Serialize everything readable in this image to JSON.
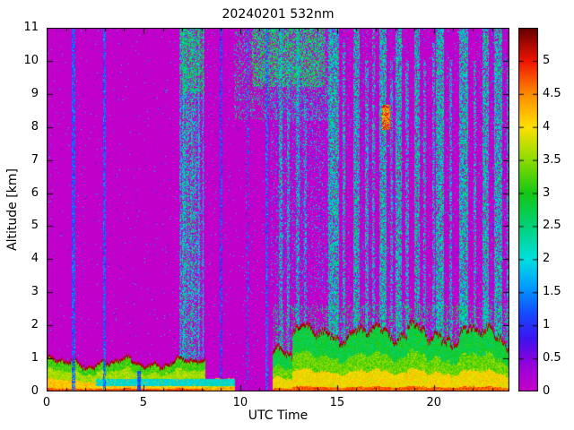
{
  "chart_data": {
    "type": "heatmap",
    "title": "20240201 532nm",
    "xlabel": "UTC Time",
    "ylabel": "Altitude [km]",
    "xlim": [
      0,
      23.9
    ],
    "ylim": [
      0,
      11
    ],
    "xticks": [
      0,
      5,
      10,
      15,
      20
    ],
    "yticks": [
      0,
      1,
      2,
      3,
      4,
      5,
      6,
      7,
      8,
      9,
      10,
      11
    ],
    "seed": 42,
    "background_value": 0.05,
    "colorbar": {
      "min": 0,
      "max": 5.5,
      "ticks": [
        0,
        0.5,
        1,
        1.5,
        2,
        2.5,
        3,
        3.5,
        4,
        4.5,
        5
      ],
      "stops": [
        {
          "v": 0.0,
          "c": "#C800C8"
        },
        {
          "v": 0.4,
          "c": "#9600DC"
        },
        {
          "v": 0.8,
          "c": "#3C14F0"
        },
        {
          "v": 1.2,
          "c": "#1450FF"
        },
        {
          "v": 1.6,
          "c": "#00A0FF"
        },
        {
          "v": 2.0,
          "c": "#00E0E0"
        },
        {
          "v": 2.5,
          "c": "#00D278"
        },
        {
          "v": 3.0,
          "c": "#14C814"
        },
        {
          "v": 3.5,
          "c": "#8CDC00"
        },
        {
          "v": 4.0,
          "c": "#FFE100"
        },
        {
          "v": 4.5,
          "c": "#FF8C00"
        },
        {
          "v": 5.0,
          "c": "#F01400"
        },
        {
          "v": 5.5,
          "c": "#640000"
        }
      ]
    },
    "speckle_regions": [
      {
        "t": [
          0,
          6.85
        ],
        "z": [
          0,
          11
        ],
        "density": 0.012,
        "v": [
          0.5,
          2.2
        ],
        "streaks": true
      },
      {
        "t": [
          8.15,
          11.6
        ],
        "z": [
          0,
          11
        ],
        "density": 0.015,
        "v": [
          0.5,
          2.2
        ],
        "streaks": true
      },
      {
        "t": [
          11.6,
          23.9
        ],
        "z": [
          0,
          11
        ],
        "density": 0.06,
        "v": [
          0.6,
          2.4
        ],
        "streaks": true
      },
      {
        "t": [
          6.85,
          8.1
        ],
        "z": [
          0,
          11
        ],
        "density": 0.45,
        "v": [
          1.3,
          2.7
        ],
        "streaks": true
      },
      {
        "t": [
          7.0,
          7.65
        ],
        "z": [
          0,
          11
        ],
        "density": 0.3,
        "v": [
          1.8,
          2.9
        ],
        "streaks": false
      },
      {
        "t": [
          6.9,
          8.1
        ],
        "z": [
          9,
          11
        ],
        "density": 0.4,
        "v": [
          2.2,
          3.2
        ],
        "streaks": false
      },
      {
        "t": [
          9.7,
          14.7
        ],
        "z": [
          8.2,
          11
        ],
        "density": 0.22,
        "v": [
          1.6,
          3.0
        ],
        "streaks": false
      },
      {
        "t": [
          10.6,
          14.3
        ],
        "z": [
          9.2,
          11
        ],
        "density": 0.5,
        "v": [
          2.0,
          3.3
        ],
        "streaks": false
      },
      {
        "t": [
          11.6,
          14.7
        ],
        "z": [
          3,
          9.2
        ],
        "density": 0.1,
        "v": [
          0.9,
          2.4
        ],
        "streaks": true
      },
      {
        "t": [
          11.65,
          23.9
        ],
        "z": [
          1,
          2.6
        ],
        "density": 0.25,
        "v": [
          2.0,
          3.2
        ],
        "streaks": true
      }
    ],
    "stripes": [
      {
        "t": 9.0,
        "w": 0.08,
        "z": [
          0,
          11
        ],
        "density": 0.6,
        "v": [
          0.8,
          1.6
        ]
      },
      {
        "t": 10.35,
        "w": 0.1,
        "z": [
          0,
          11
        ],
        "density": 0.25,
        "v": [
          0.8,
          1.8
        ]
      },
      {
        "t": 11.35,
        "w": 0.09,
        "z": [
          0,
          11
        ],
        "density": 0.65,
        "v": [
          0.9,
          1.8
        ]
      },
      {
        "t": 12.05,
        "w": 0.14,
        "z": [
          0.3,
          11
        ],
        "density": 0.6,
        "v": [
          1.4,
          2.8
        ]
      },
      {
        "t": 12.45,
        "w": 0.1,
        "z": [
          0.3,
          10
        ],
        "density": 0.55,
        "v": [
          1.4,
          2.7
        ]
      },
      {
        "t": 12.95,
        "w": 0.12,
        "z": [
          0.3,
          11
        ],
        "density": 0.6,
        "v": [
          1.4,
          2.8
        ]
      },
      {
        "t": 13.35,
        "w": 0.09,
        "z": [
          0.3,
          9
        ],
        "density": 0.5,
        "v": [
          1.3,
          2.6
        ]
      },
      {
        "t": 14.8,
        "w": 0.5,
        "z": [
          0.3,
          11
        ],
        "density": 0.7,
        "v": [
          1.5,
          2.9
        ]
      },
      {
        "t": 15.35,
        "w": 0.1,
        "z": [
          0.3,
          10.5
        ],
        "density": 0.6,
        "v": [
          1.4,
          2.8
        ]
      },
      {
        "t": 16.0,
        "w": 0.28,
        "z": [
          0.3,
          11
        ],
        "density": 0.68,
        "v": [
          1.5,
          2.9
        ]
      },
      {
        "t": 16.5,
        "w": 0.12,
        "z": [
          0.3,
          10
        ],
        "density": 0.55,
        "v": [
          1.4,
          2.7
        ]
      },
      {
        "t": 16.85,
        "w": 0.1,
        "z": [
          0.3,
          11
        ],
        "density": 0.5,
        "v": [
          1.4,
          2.7
        ]
      },
      {
        "t": 17.35,
        "w": 0.35,
        "z": [
          0.3,
          11
        ],
        "density": 0.7,
        "v": [
          1.5,
          2.9
        ]
      },
      {
        "t": 17.8,
        "w": 0.1,
        "z": [
          0.3,
          10
        ],
        "density": 0.5,
        "v": [
          1.4,
          2.7
        ]
      },
      {
        "t": 18.15,
        "w": 0.3,
        "z": [
          0.3,
          11
        ],
        "density": 0.68,
        "v": [
          1.5,
          2.9
        ]
      },
      {
        "t": 18.6,
        "w": 0.1,
        "z": [
          0.3,
          10
        ],
        "density": 0.5,
        "v": [
          1.4,
          2.7
        ]
      },
      {
        "t": 19.1,
        "w": 0.26,
        "z": [
          0.3,
          11
        ],
        "density": 0.65,
        "v": [
          1.5,
          2.9
        ]
      },
      {
        "t": 19.5,
        "w": 0.12,
        "z": [
          0.3,
          10
        ],
        "density": 0.5,
        "v": [
          1.4,
          2.7
        ]
      },
      {
        "t": 19.95,
        "w": 0.1,
        "z": [
          0.3,
          10.5
        ],
        "density": 0.55,
        "v": [
          1.4,
          2.7
        ]
      },
      {
        "t": 20.3,
        "w": 0.38,
        "z": [
          0.3,
          11
        ],
        "density": 0.7,
        "v": [
          1.5,
          2.9
        ]
      },
      {
        "t": 20.85,
        "w": 0.12,
        "z": [
          0.3,
          10
        ],
        "density": 0.5,
        "v": [
          1.4,
          2.7
        ]
      },
      {
        "t": 21.5,
        "w": 0.42,
        "z": [
          0.3,
          11
        ],
        "density": 0.7,
        "v": [
          1.5,
          2.9
        ]
      },
      {
        "t": 22.1,
        "w": 0.12,
        "z": [
          0.3,
          10
        ],
        "density": 0.5,
        "v": [
          1.4,
          2.7
        ]
      },
      {
        "t": 22.65,
        "w": 0.3,
        "z": [
          0.3,
          11
        ],
        "density": 0.68,
        "v": [
          1.5,
          2.9
        ]
      },
      {
        "t": 23.3,
        "w": 0.35,
        "z": [
          0.3,
          11
        ],
        "density": 0.7,
        "v": [
          1.5,
          2.9
        ]
      },
      {
        "t": 23.8,
        "w": 0.1,
        "z": [
          0.3,
          10
        ],
        "density": 0.55,
        "v": [
          1.4,
          2.7
        ]
      }
    ],
    "boundary_layers": [
      {
        "t": [
          0,
          8.15
        ],
        "base": 0.82,
        "amp": 0.22,
        "ph": 0.5,
        "layers": [
          [
            0,
            0.1,
            4.5,
            5.0
          ],
          [
            0.1,
            0.4,
            3.9,
            4.4
          ],
          [
            0.4,
            0.72,
            3.3,
            3.9
          ],
          [
            0.72,
            1,
            2.8,
            3.5
          ]
        ],
        "cap": [
          0.09,
          5.1,
          5.45
        ]
      },
      {
        "t": [
          8.15,
          9.7
        ],
        "base": 0.35,
        "amp": 0.07,
        "ph": 2.0,
        "layers": [
          [
            0,
            0.35,
            4.0,
            4.6
          ],
          [
            0.35,
            0.7,
            3.4,
            4.0
          ],
          [
            0.7,
            1,
            2.6,
            3.3
          ]
        ],
        "cap": [
          0.03,
          4.2,
          4.8
        ]
      },
      {
        "t": [
          11.65,
          12.7
        ],
        "base": 1.0,
        "amp": 0.3,
        "ph": 4.0,
        "layers": [
          [
            0,
            0.08,
            4.4,
            5.0
          ],
          [
            0.08,
            0.35,
            3.7,
            4.3
          ],
          [
            0.35,
            0.62,
            3.0,
            3.7
          ],
          [
            0.62,
            1,
            2.4,
            3.2
          ]
        ],
        "cap": [
          0.12,
          5.05,
          5.45
        ]
      },
      {
        "t": [
          12.7,
          18.6
        ],
        "base": 1.7,
        "amp": 0.35,
        "ph": 1.2,
        "layers": [
          [
            0,
            0.08,
            4.4,
            5.0
          ],
          [
            0.08,
            0.35,
            3.7,
            4.3
          ],
          [
            0.35,
            0.62,
            3.0,
            3.7
          ],
          [
            0.62,
            1,
            2.4,
            3.2
          ]
        ],
        "cap": [
          0.12,
          5.05,
          5.45
        ]
      },
      {
        "t": [
          18.6,
          23.9
        ],
        "base": 1.65,
        "amp": 0.45,
        "ph": 3.3,
        "layers": [
          [
            0,
            0.08,
            4.4,
            5.0
          ],
          [
            0.08,
            0.35,
            3.7,
            4.3
          ],
          [
            0.35,
            0.62,
            3.0,
            3.7
          ],
          [
            0.62,
            1,
            2.4,
            3.2
          ]
        ],
        "cap": [
          0.12,
          5.05,
          5.45
        ]
      }
    ],
    "patches": [
      {
        "t": [
          2.55,
          9.7
        ],
        "z": [
          0.16,
          0.34
        ],
        "density": 0.95,
        "v": [
          1.8,
          2.3
        ]
      },
      {
        "t": [
          1.3,
          1.42
        ],
        "z": [
          0,
          11
        ],
        "density": 0.75,
        "v": [
          0.9,
          1.7
        ]
      },
      {
        "t": [
          2.9,
          3.02
        ],
        "z": [
          0,
          11
        ],
        "density": 0.75,
        "v": [
          0.9,
          1.7
        ]
      },
      {
        "t": [
          4.7,
          4.8
        ],
        "z": [
          0,
          0.6
        ],
        "density": 0.9,
        "v": [
          0.9,
          1.5
        ]
      },
      {
        "t": [
          17.3,
          17.7
        ],
        "z": [
          7.9,
          8.65
        ],
        "density": 0.85,
        "v": [
          4.0,
          5.2
        ]
      }
    ]
  }
}
